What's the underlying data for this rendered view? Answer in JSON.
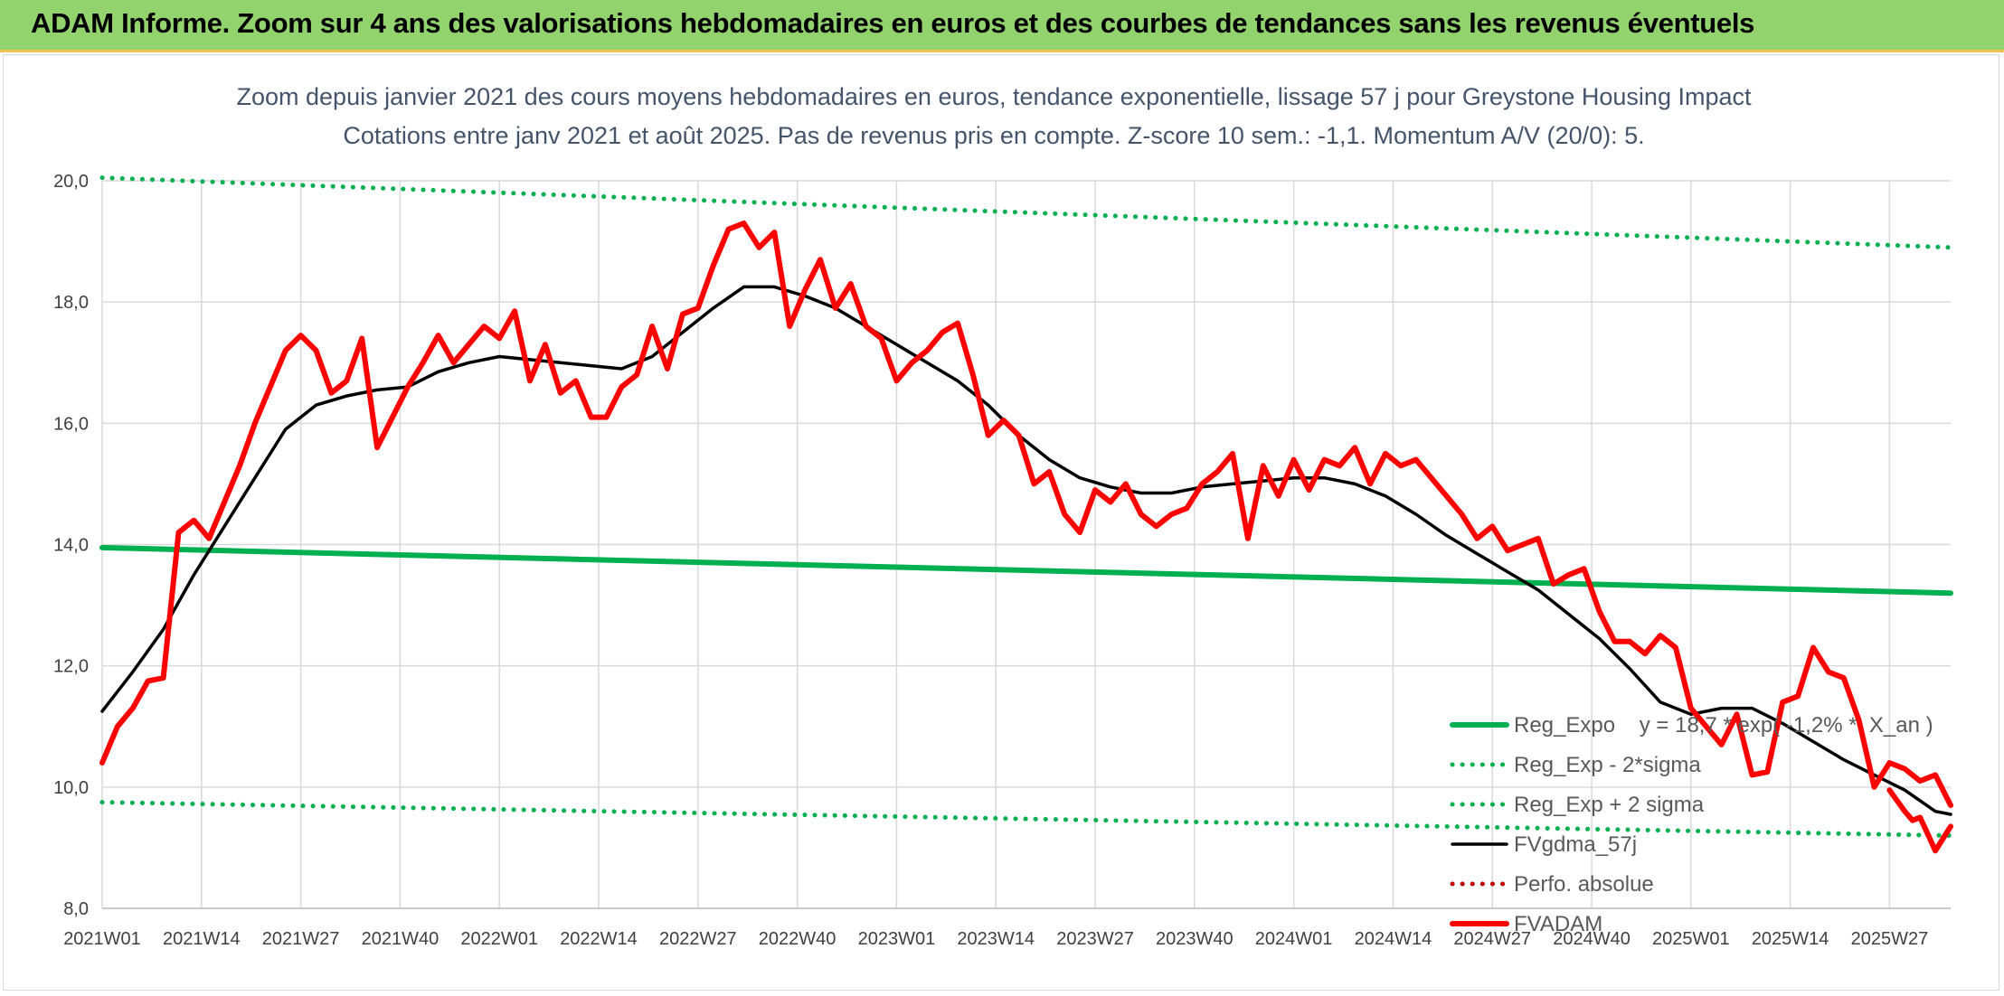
{
  "banner": {
    "title": "ADAM Informe. Zoom sur 4 ans des valorisations hebdomadaires en euros et des courbes de tendances sans les revenus éventuels"
  },
  "chart_data": {
    "type": "line",
    "title": "Zoom depuis janvier 2021 des cours moyens hebdomadaires en euros, tendance exponentielle, lissage 57 j pour Greystone Housing Impact",
    "subtitle": "Cotations entre janv 2021 et août 2025. Pas de revenus pris en compte. Z-score 10 sem.: -1,1. Momentum A/V (20/0): 5.",
    "xlabel": "",
    "ylabel": "",
    "ylim": [
      8,
      20
    ],
    "y_ticks": [
      "8,0",
      "10,0",
      "12,0",
      "14,0",
      "16,0",
      "18,0",
      "20,0"
    ],
    "x_ticks": [
      "2021W01",
      "2021W14",
      "2021W27",
      "2021W40",
      "2022W01",
      "2022W14",
      "2022W27",
      "2022W40",
      "2023W01",
      "2023W14",
      "2023W27",
      "2023W40",
      "2024W01",
      "2024W14",
      "2024W27",
      "2024W40",
      "2025W01",
      "2025W14",
      "2025W27"
    ],
    "weeks_total": 243,
    "grid": true,
    "legend_position": "right",
    "series": [
      {
        "name": "Reg_Expo    y = 18,7 * exp( -1,2% *  X_an )",
        "color": "#00b050",
        "style": "solid",
        "x": [
          0,
          242
        ],
        "values": [
          13.95,
          13.2
        ]
      },
      {
        "name": "Reg_Exp - 2*sigma",
        "color": "#00b050",
        "style": "dotted",
        "x": [
          0,
          242
        ],
        "values": [
          9.75,
          9.2
        ]
      },
      {
        "name": "Reg_Exp + 2 sigma",
        "color": "#00b050",
        "style": "dotted",
        "x": [
          0,
          242
        ],
        "values": [
          20.05,
          18.9
        ]
      },
      {
        "name": "FVgdma_57j",
        "color": "#000000",
        "style": "solid",
        "x": [
          0,
          4,
          8,
          12,
          16,
          20,
          24,
          28,
          32,
          36,
          40,
          44,
          48,
          52,
          56,
          60,
          64,
          68,
          72,
          76,
          80,
          84,
          88,
          92,
          96,
          100,
          104,
          108,
          112,
          116,
          120,
          124,
          128,
          132,
          136,
          140,
          144,
          148,
          152,
          156,
          160,
          164,
          168,
          172,
          176,
          180,
          184,
          188,
          192,
          196,
          200,
          204,
          208,
          212,
          216,
          220,
          224,
          228,
          232,
          236,
          240,
          242
        ],
        "values": [
          11.25,
          11.9,
          12.6,
          13.5,
          14.3,
          15.1,
          15.9,
          16.3,
          16.45,
          16.55,
          16.6,
          16.85,
          17.0,
          17.1,
          17.05,
          17.0,
          16.95,
          16.9,
          17.1,
          17.5,
          17.9,
          18.25,
          18.25,
          18.1,
          17.9,
          17.6,
          17.3,
          17.0,
          16.7,
          16.3,
          15.8,
          15.4,
          15.1,
          14.95,
          14.85,
          14.85,
          14.95,
          15.0,
          15.05,
          15.1,
          15.1,
          15.0,
          14.8,
          14.5,
          14.15,
          13.85,
          13.55,
          13.25,
          12.85,
          12.45,
          11.95,
          11.4,
          11.2,
          11.3,
          11.3,
          11.05,
          10.75,
          10.45,
          10.2,
          9.95,
          9.6,
          9.55
        ]
      },
      {
        "name": "Perfo. absolue",
        "color": "#c00000",
        "style": "dotted",
        "x": [],
        "values": []
      },
      {
        "name": "FVADAM",
        "color": "#ff0000",
        "style": "solid",
        "x": [
          0,
          2,
          4,
          6,
          8,
          10,
          12,
          14,
          16,
          18,
          20,
          22,
          24,
          26,
          28,
          30,
          32,
          34,
          36,
          38,
          40,
          42,
          44,
          46,
          48,
          50,
          52,
          54,
          56,
          58,
          60,
          62,
          64,
          66,
          68,
          70,
          72,
          74,
          76,
          78,
          80,
          82,
          84,
          86,
          88,
          90,
          92,
          94,
          96,
          98,
          100,
          102,
          104,
          106,
          108,
          110,
          112,
          114,
          116,
          118,
          120,
          122,
          124,
          126,
          128,
          130,
          132,
          134,
          136,
          138,
          140,
          142,
          144,
          146,
          148,
          150,
          152,
          154,
          156,
          158,
          160,
          162,
          164,
          166,
          168,
          170,
          172,
          174,
          176,
          178,
          180,
          182,
          184,
          186,
          188,
          190,
          192,
          194,
          196,
          198,
          200,
          202,
          204,
          206,
          208,
          210,
          212,
          214,
          216,
          218,
          220,
          222,
          224,
          226,
          228,
          230,
          232,
          234,
          236,
          238,
          240,
          242
        ],
        "values": [
          10.4,
          11.0,
          11.3,
          11.75,
          11.8,
          14.2,
          14.4,
          14.1,
          14.7,
          15.3,
          16.0,
          16.6,
          17.2,
          17.45,
          17.2,
          16.5,
          16.7,
          17.4,
          15.6,
          16.1,
          16.6,
          17.0,
          17.45,
          17.0,
          17.3,
          17.6,
          17.4,
          17.85,
          16.7,
          17.3,
          16.5,
          16.7,
          16.1,
          16.1,
          16.6,
          16.8,
          17.6,
          16.9,
          17.8,
          17.9,
          18.6,
          19.2,
          19.3,
          18.9,
          19.15,
          17.6,
          18.2,
          18.7,
          17.9,
          18.3,
          17.6,
          17.4,
          16.7,
          17.0,
          17.2,
          17.5,
          17.65,
          16.8,
          15.8,
          16.05,
          15.8,
          15.0,
          15.2,
          14.5,
          14.2,
          14.9,
          14.7,
          15.0,
          14.5,
          14.3,
          14.5,
          14.6,
          15.0,
          15.2,
          15.5,
          14.1,
          15.3,
          14.8,
          15.4,
          14.9,
          15.4,
          15.3,
          15.6,
          15.0,
          15.5,
          15.3,
          15.4,
          15.1,
          14.8,
          14.5,
          14.1,
          14.3,
          13.9,
          14.0,
          14.1,
          13.35,
          13.5,
          13.6,
          12.9,
          12.4,
          12.4,
          12.2,
          12.5,
          12.3,
          11.3,
          11.0,
          10.7,
          11.2,
          10.2,
          10.25,
          11.4,
          11.5,
          12.3,
          11.9,
          11.8,
          11.1,
          10.0,
          10.4,
          10.3,
          10.1,
          10.2,
          9.7
        ],
        "tail_x": [
          234,
          236,
          237,
          238,
          240,
          242
        ],
        "tail_values": [
          9.95,
          9.6,
          9.45,
          9.5,
          8.95,
          9.35
        ]
      }
    ]
  }
}
